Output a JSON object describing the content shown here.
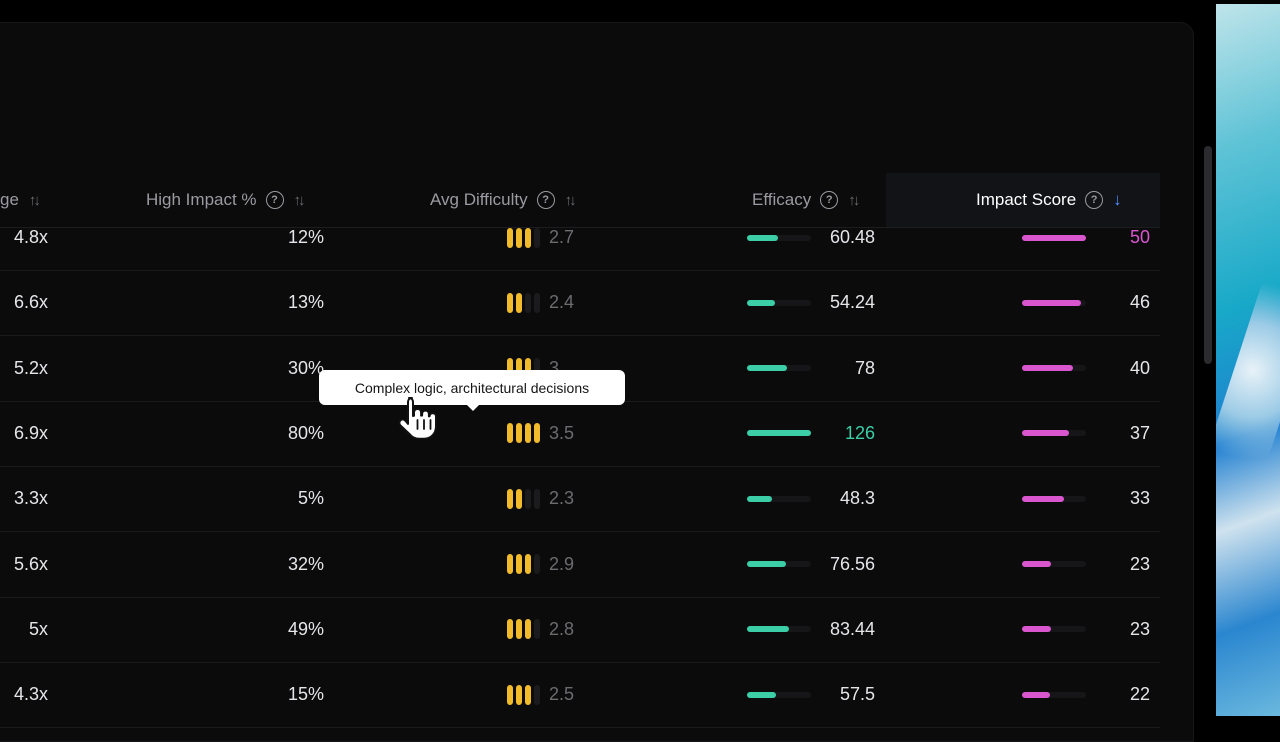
{
  "table": {
    "columns": [
      {
        "label": "ge",
        "has_help": false,
        "sort": "none"
      },
      {
        "label": "High Impact %",
        "has_help": true,
        "sort": "none"
      },
      {
        "label": "Avg Difficulty",
        "has_help": true,
        "sort": "none"
      },
      {
        "label": "Efficacy",
        "has_help": true,
        "sort": "none"
      },
      {
        "label": "Impact Score",
        "has_help": true,
        "sort": "descending"
      }
    ],
    "efficacy_bar_max": 126,
    "impact_bar_max": 50,
    "rows": [
      {
        "multiplier": "4.8x",
        "high_impact": "12%",
        "difficulty_level": 3,
        "difficulty": "2.7",
        "efficacy": "60.48",
        "efficacy_value": 60.48,
        "impact_score": "50",
        "impact_value": 50,
        "efficacy_highlight": false,
        "impact_highlight": true
      },
      {
        "multiplier": "6.6x",
        "high_impact": "13%",
        "difficulty_level": 2,
        "difficulty": "2.4",
        "efficacy": "54.24",
        "efficacy_value": 54.24,
        "impact_score": "46",
        "impact_value": 46,
        "efficacy_highlight": false,
        "impact_highlight": false
      },
      {
        "multiplier": "5.2x",
        "high_impact": "30%",
        "difficulty_level": 3,
        "difficulty": "3",
        "efficacy": "78",
        "efficacy_value": 78,
        "impact_score": "40",
        "impact_value": 40,
        "efficacy_highlight": false,
        "impact_highlight": false
      },
      {
        "multiplier": "6.9x",
        "high_impact": "80%",
        "difficulty_level": 4,
        "difficulty": "3.5",
        "efficacy": "126",
        "efficacy_value": 126,
        "impact_score": "37",
        "impact_value": 37,
        "efficacy_highlight": true,
        "impact_highlight": false
      },
      {
        "multiplier": "3.3x",
        "high_impact": "5%",
        "difficulty_level": 2,
        "difficulty": "2.3",
        "efficacy": "48.3",
        "efficacy_value": 48.3,
        "impact_score": "33",
        "impact_value": 33,
        "efficacy_highlight": false,
        "impact_highlight": false
      },
      {
        "multiplier": "5.6x",
        "high_impact": "32%",
        "difficulty_level": 3,
        "difficulty": "2.9",
        "efficacy": "76.56",
        "efficacy_value": 76.56,
        "impact_score": "23",
        "impact_value": 23,
        "efficacy_highlight": false,
        "impact_highlight": false
      },
      {
        "multiplier": "5x",
        "high_impact": "49%",
        "difficulty_level": 3,
        "difficulty": "2.8",
        "efficacy": "83.44",
        "efficacy_value": 83.44,
        "impact_score": "23",
        "impact_value": 23,
        "efficacy_highlight": false,
        "impact_highlight": false
      },
      {
        "multiplier": "4.3x",
        "high_impact": "15%",
        "difficulty_level": 3,
        "difficulty": "2.5",
        "efficacy": "57.5",
        "efficacy_value": 57.5,
        "impact_score": "22",
        "impact_value": 22,
        "efficacy_highlight": false,
        "impact_highlight": false
      }
    ]
  },
  "tooltip": {
    "text": "Complex logic, architectural decisions"
  },
  "colors": {
    "difficulty": "#f2bb2c",
    "efficacy": "#3ccfa7",
    "impact": "#d956cf",
    "sort_active": "#4d8dff"
  },
  "icons": {
    "help": "question-circle-icon",
    "sort": "sort-arrows-icon",
    "sort_active": "arrow-down-icon",
    "cursor": "hand-pointer-cursor-icon"
  }
}
